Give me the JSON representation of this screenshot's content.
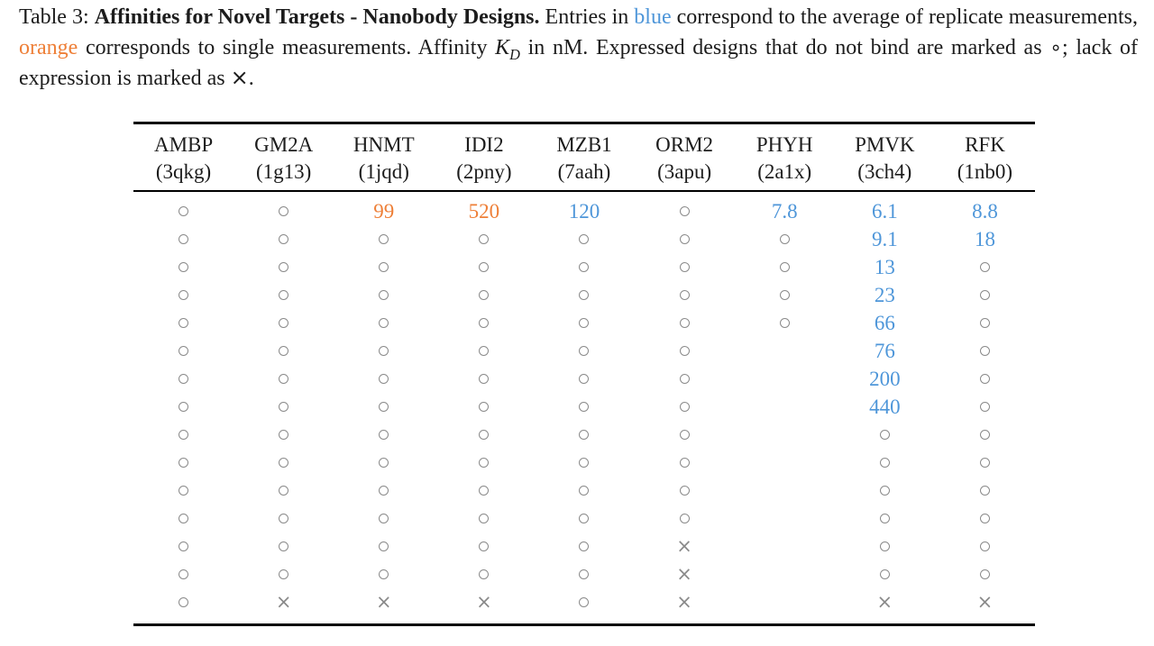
{
  "colors": {
    "blue": "#4E96D9",
    "orange": "#EE7F37",
    "symbol_gray": "#8a8a8a",
    "text": "#1c1c1c"
  },
  "caption": {
    "prefix": "Table 3: ",
    "title": "Affinities for Novel Targets - Nanobody Designs.",
    "seg1": " Entries in ",
    "blue_word": "blue",
    "seg2": " correspond to the average of replicate measurements, ",
    "orange_word": "orange",
    "seg3": " corresponds to single measurements. Affinity ",
    "kd_base": "K",
    "kd_sub": "D",
    "seg4": " in nM. Expressed designs that do not bind are marked as ",
    "circle_char": "∘",
    "seg5": "; lack of expression is marked as ",
    "times_char": "×",
    "seg6": "."
  },
  "table": {
    "columns": [
      {
        "name": "AMBP",
        "pdb": "(3qkg)"
      },
      {
        "name": "GM2A",
        "pdb": "(1g13)"
      },
      {
        "name": "HNMT",
        "pdb": "(1jqd)"
      },
      {
        "name": "IDI2",
        "pdb": "(2pny)"
      },
      {
        "name": "MZB1",
        "pdb": "(7aah)"
      },
      {
        "name": "ORM2",
        "pdb": "(3apu)"
      },
      {
        "name": "PHYH",
        "pdb": "(2a1x)"
      },
      {
        "name": "PMVK",
        "pdb": "(3ch4)"
      },
      {
        "name": "RFK",
        "pdb": "(1nb0)"
      }
    ],
    "symbols": {
      "times": "×"
    },
    "rows": [
      [
        "o",
        "o",
        {
          "v": "99",
          "c": "orange"
        },
        {
          "v": "520",
          "c": "orange"
        },
        {
          "v": "120",
          "c": "blue"
        },
        "o",
        {
          "v": "7.8",
          "c": "blue"
        },
        {
          "v": "6.1",
          "c": "blue"
        },
        {
          "v": "8.8",
          "c": "blue"
        }
      ],
      [
        "o",
        "o",
        "o",
        "o",
        "o",
        "o",
        "o",
        {
          "v": "9.1",
          "c": "blue"
        },
        {
          "v": "18",
          "c": "blue"
        }
      ],
      [
        "o",
        "o",
        "o",
        "o",
        "o",
        "o",
        "o",
        {
          "v": "13",
          "c": "blue"
        },
        "o"
      ],
      [
        "o",
        "o",
        "o",
        "o",
        "o",
        "o",
        "o",
        {
          "v": "23",
          "c": "blue"
        },
        "o"
      ],
      [
        "o",
        "o",
        "o",
        "o",
        "o",
        "o",
        "o",
        {
          "v": "66",
          "c": "blue"
        },
        "o"
      ],
      [
        "o",
        "o",
        "o",
        "o",
        "o",
        "o",
        "",
        {
          "v": "76",
          "c": "blue"
        },
        "o"
      ],
      [
        "o",
        "o",
        "o",
        "o",
        "o",
        "o",
        "",
        {
          "v": "200",
          "c": "blue"
        },
        "o"
      ],
      [
        "o",
        "o",
        "o",
        "o",
        "o",
        "o",
        "",
        {
          "v": "440",
          "c": "blue"
        },
        "o"
      ],
      [
        "o",
        "o",
        "o",
        "o",
        "o",
        "o",
        "",
        "o",
        "o"
      ],
      [
        "o",
        "o",
        "o",
        "o",
        "o",
        "o",
        "",
        "o",
        "o"
      ],
      [
        "o",
        "o",
        "o",
        "o",
        "o",
        "o",
        "",
        "o",
        "o"
      ],
      [
        "o",
        "o",
        "o",
        "o",
        "o",
        "o",
        "",
        "o",
        "o"
      ],
      [
        "o",
        "o",
        "o",
        "o",
        "o",
        "x",
        "",
        "o",
        "o"
      ],
      [
        "o",
        "o",
        "o",
        "o",
        "o",
        "x",
        "",
        "o",
        "o"
      ],
      [
        "o",
        "x",
        "x",
        "x",
        "o",
        "x",
        "",
        "x",
        "x"
      ]
    ]
  }
}
